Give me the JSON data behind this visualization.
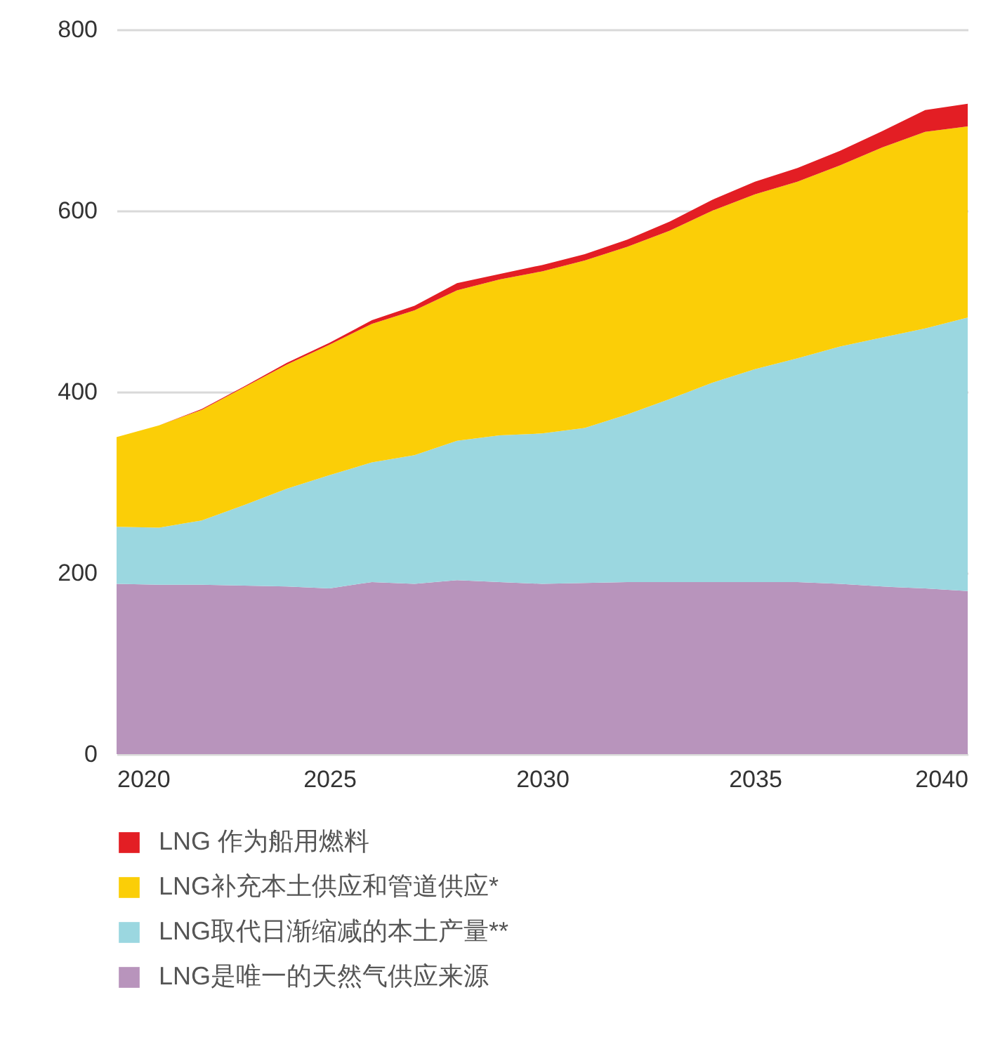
{
  "chart_data": {
    "type": "area",
    "stacked": true,
    "x": [
      2020,
      2021,
      2022,
      2023,
      2024,
      2025,
      2026,
      2027,
      2028,
      2029,
      2030,
      2031,
      2032,
      2033,
      2034,
      2035,
      2036,
      2037,
      2038,
      2039,
      2040
    ],
    "series": [
      {
        "name": "LNG是唯一的天然气供应来源",
        "color": "#b894bc",
        "values": [
          188,
          187,
          187,
          186,
          185,
          183,
          190,
          188,
          192,
          190,
          188,
          189,
          190,
          190,
          190,
          190,
          190,
          188,
          185,
          183,
          180
        ]
      },
      {
        "name": "LNG取代日渐缩减的本土产量**",
        "color": "#9bd7e0",
        "values": [
          63,
          63,
          71,
          89,
          108,
          125,
          132,
          142,
          154,
          162,
          166,
          171,
          185,
          202,
          220,
          235,
          247,
          262,
          275,
          287,
          302
        ]
      },
      {
        "name": "LNG补充本土供应和管道供应*",
        "color": "#fbce07",
        "values": [
          99,
          113,
          122,
          130,
          137,
          144,
          153,
          160,
          166,
          172,
          179,
          185,
          185,
          186,
          190,
          193,
          195,
          200,
          210,
          217,
          211
        ]
      },
      {
        "name": "LNG 作为船用燃料",
        "color": "#e31e24",
        "values": [
          0,
          0,
          1,
          1,
          2,
          2,
          4,
          5,
          8,
          6,
          7,
          7,
          8,
          10,
          12,
          14,
          15,
          16,
          18,
          24,
          25
        ]
      }
    ],
    "xlim": [
      2020,
      2040
    ],
    "xticks": [
      2020,
      2025,
      2030,
      2035,
      2040
    ],
    "ylim": [
      0,
      800
    ],
    "yticks": [
      0,
      200,
      400,
      600,
      800
    ],
    "grid": "y",
    "legend": "bottom"
  }
}
